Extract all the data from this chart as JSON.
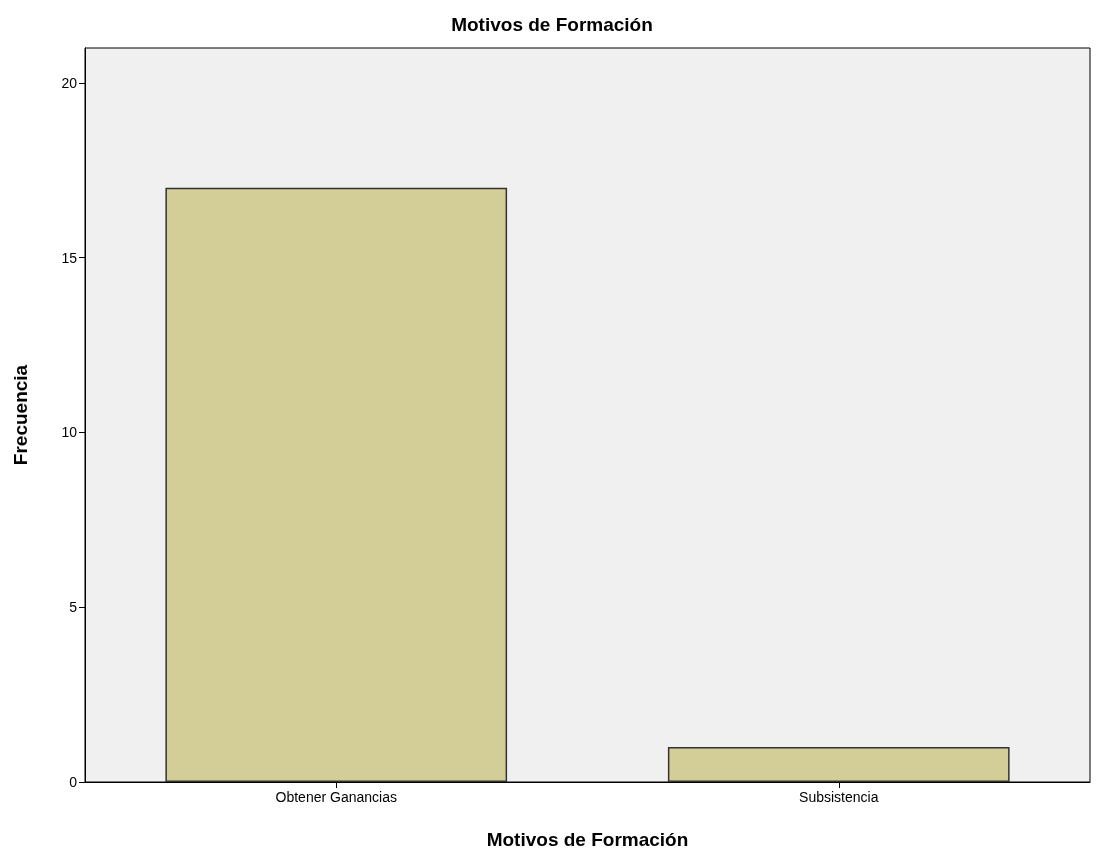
{
  "chart_data": {
    "type": "bar",
    "title": "Motivos de Formación",
    "xlabel": "Motivos de Formación",
    "ylabel": "Frecuencia",
    "categories": [
      "Obtener Ganancias",
      "Subsistencia"
    ],
    "values": [
      17,
      1
    ],
    "color": "#d3cd98",
    "ylim": [
      0,
      21
    ],
    "yticks": [
      0,
      5,
      10,
      15,
      20
    ],
    "grid": false
  }
}
